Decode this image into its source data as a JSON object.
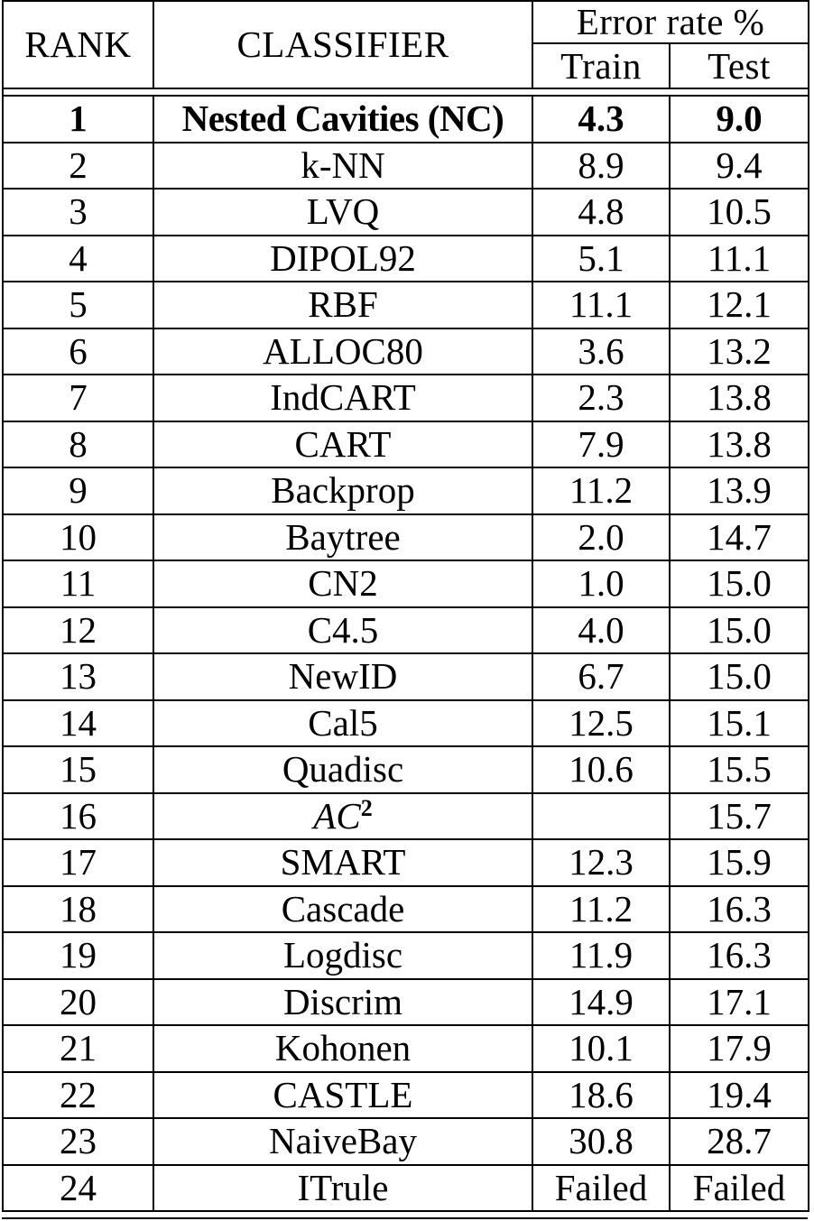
{
  "table": {
    "header": {
      "rank": "RANK",
      "classifier": "CLASSIFIER",
      "error_rate": "Error rate %",
      "train": "Train",
      "test": "Test"
    },
    "rows": [
      {
        "rank": "1",
        "classifier": "Nested Cavities (NC)",
        "train": "4.3",
        "test": "9.0"
      },
      {
        "rank": "2",
        "classifier": "k-NN",
        "train": "8.9",
        "test": "9.4"
      },
      {
        "rank": "3",
        "classifier": "LVQ",
        "train": "4.8",
        "test": "10.5"
      },
      {
        "rank": "4",
        "classifier": "DIPOL92",
        "train": "5.1",
        "test": "11.1"
      },
      {
        "rank": "5",
        "classifier": "RBF",
        "train": "11.1",
        "test": "12.1"
      },
      {
        "rank": "6",
        "classifier": "ALLOC80",
        "train": "3.6",
        "test": "13.2"
      },
      {
        "rank": "7",
        "classifier": "IndCART",
        "train": "2.3",
        "test": "13.8"
      },
      {
        "rank": "8",
        "classifier": "CART",
        "train": "7.9",
        "test": "13.8"
      },
      {
        "rank": "9",
        "classifier": "Backprop",
        "train": "11.2",
        "test": "13.9"
      },
      {
        "rank": "10",
        "classifier": "Baytree",
        "train": "2.0",
        "test": "14.7"
      },
      {
        "rank": "11",
        "classifier": "CN2",
        "train": "1.0",
        "test": "15.0"
      },
      {
        "rank": "12",
        "classifier": "C4.5",
        "train": "4.0",
        "test": "15.0"
      },
      {
        "rank": "13",
        "classifier": "NewID",
        "train": "6.7",
        "test": "15.0"
      },
      {
        "rank": "14",
        "classifier": "Cal5",
        "train": "12.5",
        "test": "15.1"
      },
      {
        "rank": "15",
        "classifier": "Quadisc",
        "train": "10.6",
        "test": "15.5"
      },
      {
        "rank": "16",
        "classifier": "AC",
        "classifier_sup": "2",
        "train": "",
        "test": "15.7"
      },
      {
        "rank": "17",
        "classifier": "SMART",
        "train": "12.3",
        "test": "15.9"
      },
      {
        "rank": "18",
        "classifier": "Cascade",
        "train": "11.2",
        "test": "16.3"
      },
      {
        "rank": "19",
        "classifier": "Logdisc",
        "train": "11.9",
        "test": "16.3"
      },
      {
        "rank": "20",
        "classifier": "Discrim",
        "train": "14.9",
        "test": "17.1"
      },
      {
        "rank": "21",
        "classifier": "Kohonen",
        "train": "10.1",
        "test": "17.9"
      },
      {
        "rank": "22",
        "classifier": "CASTLE",
        "train": "18.6",
        "test": "19.4"
      },
      {
        "rank": "23",
        "classifier": "NaiveBay",
        "train": "30.8",
        "test": "28.7"
      },
      {
        "rank": "24",
        "classifier": "ITrule",
        "train": "Failed",
        "test": "Failed"
      }
    ]
  }
}
